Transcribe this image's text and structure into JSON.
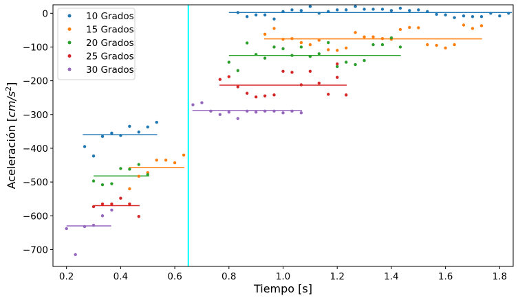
{
  "chart_data": {
    "type": "scatter",
    "xlabel": "Tiempo [s]",
    "ylabel_main": "Aceleración [",
    "ylabel_unit": "cm/s",
    "ylabel_exp": "2",
    "ylabel_close": "]",
    "xlim": [
      0.15,
      1.85
    ],
    "ylim": [
      -750,
      25
    ],
    "x_ticks": [
      0.2,
      0.4,
      0.6,
      0.8,
      1.0,
      1.2,
      1.4,
      1.6,
      1.8
    ],
    "x_tick_labels": [
      "0.2",
      "0.4",
      "0.6",
      "0.8",
      "1.0",
      "1.2",
      "1.4",
      "1.6",
      "1.8"
    ],
    "y_ticks": [
      0,
      -100,
      -200,
      -300,
      -400,
      -500,
      -600,
      -700
    ],
    "y_tick_labels": [
      "0",
      "−100",
      "−200",
      "−300",
      "−400",
      "−500",
      "−600",
      "−700"
    ],
    "legend_position": "top-left",
    "vline": {
      "x": 0.65,
      "color": "#00ffff"
    },
    "series": [
      {
        "name": "10 Grados",
        "color": "#1f77b4",
        "points": [
          [
            0.267,
            -395
          ],
          [
            0.3,
            -423
          ],
          [
            0.333,
            -365
          ],
          [
            0.367,
            -355
          ],
          [
            0.4,
            -362
          ],
          [
            0.433,
            -335
          ],
          [
            0.467,
            -352
          ],
          [
            0.5,
            -337
          ],
          [
            0.533,
            -323
          ],
          [
            0.833,
            2
          ],
          [
            0.867,
            -10
          ],
          [
            0.9,
            -5
          ],
          [
            0.933,
            -5
          ],
          [
            0.967,
            -17
          ],
          [
            1.0,
            5
          ],
          [
            1.033,
            10
          ],
          [
            1.067,
            8
          ],
          [
            1.1,
            20
          ],
          [
            1.133,
            0
          ],
          [
            1.167,
            5
          ],
          [
            1.2,
            10
          ],
          [
            1.233,
            10
          ],
          [
            1.267,
            20
          ],
          [
            1.3,
            12
          ],
          [
            1.333,
            12
          ],
          [
            1.367,
            12
          ],
          [
            1.4,
            8
          ],
          [
            1.433,
            15
          ],
          [
            1.467,
            8
          ],
          [
            1.5,
            10
          ],
          [
            1.533,
            5
          ],
          [
            1.567,
            -3
          ],
          [
            1.6,
            -5
          ],
          [
            1.633,
            -13
          ],
          [
            1.667,
            -8
          ],
          [
            1.7,
            -10
          ],
          [
            1.733,
            -10
          ],
          [
            1.767,
            0
          ],
          [
            1.8,
            -8
          ],
          [
            1.833,
            0
          ]
        ],
        "segments": [
          [
            0.26,
            0.535,
            -360
          ],
          [
            0.8,
            1.845,
            2
          ]
        ]
      },
      {
        "name": "15 Grados",
        "color": "#ff7f0e",
        "points": [
          [
            0.433,
            -520
          ],
          [
            0.467,
            -483
          ],
          [
            0.5,
            -472
          ],
          [
            0.533,
            -435
          ],
          [
            0.567,
            -435
          ],
          [
            0.6,
            -443
          ],
          [
            0.633,
            -420
          ],
          [
            0.933,
            -62
          ],
          [
            0.967,
            -45
          ],
          [
            1.0,
            -77
          ],
          [
            1.033,
            -75
          ],
          [
            1.067,
            -87
          ],
          [
            1.1,
            -93
          ],
          [
            1.133,
            -80
          ],
          [
            1.167,
            -108
          ],
          [
            1.2,
            -110
          ],
          [
            1.233,
            -103
          ],
          [
            1.267,
            -57
          ],
          [
            1.3,
            -70
          ],
          [
            1.333,
            -70
          ],
          [
            1.367,
            -75
          ],
          [
            1.4,
            -77
          ],
          [
            1.433,
            -48
          ],
          [
            1.467,
            -42
          ],
          [
            1.5,
            -43
          ],
          [
            1.533,
            -93
          ],
          [
            1.567,
            -95
          ],
          [
            1.6,
            -103
          ],
          [
            1.633,
            -93
          ],
          [
            1.667,
            -35
          ],
          [
            1.7,
            -45
          ],
          [
            1.733,
            -37
          ]
        ],
        "segments": [
          [
            0.43,
            0.635,
            -457
          ],
          [
            0.93,
            1.735,
            -76
          ]
        ]
      },
      {
        "name": "20 Grados",
        "color": "#2ca02c",
        "points": [
          [
            0.3,
            -497
          ],
          [
            0.333,
            -508
          ],
          [
            0.367,
            -505
          ],
          [
            0.4,
            -460
          ],
          [
            0.433,
            -462
          ],
          [
            0.467,
            -448
          ],
          [
            0.5,
            -478
          ],
          [
            0.8,
            -145
          ],
          [
            0.833,
            -170
          ],
          [
            0.867,
            -88
          ],
          [
            0.9,
            -122
          ],
          [
            0.933,
            -133
          ],
          [
            0.967,
            -100
          ],
          [
            1.0,
            -105
          ],
          [
            1.033,
            -125
          ],
          [
            1.067,
            -100
          ],
          [
            1.1,
            -128
          ],
          [
            1.133,
            -120
          ],
          [
            1.167,
            -87
          ],
          [
            1.2,
            -158
          ],
          [
            1.233,
            -145
          ],
          [
            1.267,
            -152
          ],
          [
            1.3,
            -140
          ],
          [
            1.333,
            -93
          ],
          [
            1.367,
            -93
          ],
          [
            1.4,
            -73
          ],
          [
            1.433,
            -100
          ]
        ],
        "segments": [
          [
            0.3,
            0.505,
            -482
          ],
          [
            0.8,
            1.435,
            -125
          ]
        ]
      },
      {
        "name": "25 Grados",
        "color": "#d62728",
        "points": [
          [
            0.3,
            -573
          ],
          [
            0.333,
            -565
          ],
          [
            0.367,
            -565
          ],
          [
            0.4,
            -548
          ],
          [
            0.433,
            -565
          ],
          [
            0.467,
            -602
          ],
          [
            0.767,
            -196
          ],
          [
            0.8,
            -188
          ],
          [
            0.833,
            -218
          ],
          [
            0.867,
            -237
          ],
          [
            0.9,
            -248
          ],
          [
            0.933,
            -245
          ],
          [
            0.967,
            -242
          ],
          [
            1.0,
            -172
          ],
          [
            1.033,
            -175
          ],
          [
            1.067,
            -212
          ],
          [
            1.1,
            -172
          ],
          [
            1.133,
            -207
          ],
          [
            1.167,
            -240
          ],
          [
            1.2,
            -150
          ],
          [
            1.233,
            -242
          ],
          [
            1.2,
            -190
          ]
        ],
        "segments": [
          [
            0.3,
            0.47,
            -570
          ],
          [
            0.765,
            1.235,
            -213
          ]
        ]
      },
      {
        "name": "30 Grados",
        "color": "#9467bd",
        "points": [
          [
            0.2,
            -638
          ],
          [
            0.233,
            -715
          ],
          [
            0.267,
            -632
          ],
          [
            0.3,
            -628
          ],
          [
            0.333,
            -600
          ],
          [
            0.367,
            -583
          ],
          [
            0.667,
            -271
          ],
          [
            0.7,
            -265
          ],
          [
            0.733,
            -290
          ],
          [
            0.767,
            -300
          ],
          [
            0.8,
            -293
          ],
          [
            0.833,
            -312
          ],
          [
            0.867,
            -290
          ],
          [
            0.9,
            -293
          ],
          [
            0.933,
            -290
          ],
          [
            0.967,
            -290
          ],
          [
            1.0,
            -295
          ],
          [
            1.033,
            -290
          ],
          [
            1.067,
            -295
          ]
        ],
        "segments": [
          [
            0.2,
            0.365,
            -630
          ],
          [
            0.665,
            1.07,
            -288
          ]
        ]
      }
    ]
  }
}
